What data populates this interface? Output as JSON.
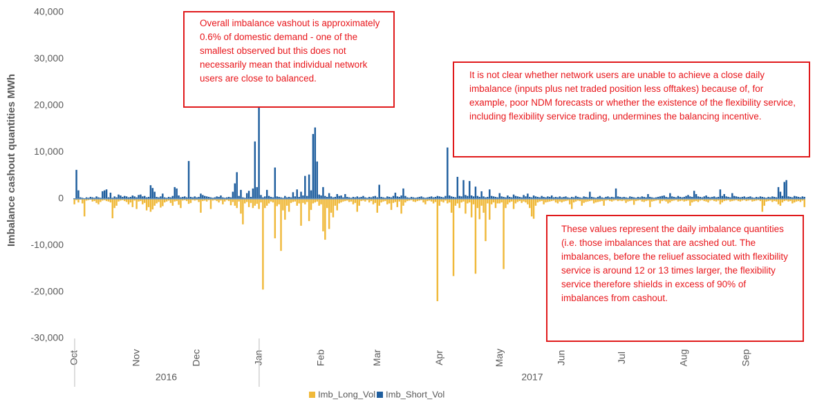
{
  "chart_data": {
    "type": "bar",
    "ylabel": "Imbalance cashout quantities MWh",
    "ylim": [
      -30000,
      40000
    ],
    "yticks": [
      {
        "value": -30000,
        "label": "-30,000"
      },
      {
        "value": -20000,
        "label": "-20,000"
      },
      {
        "value": -10000,
        "label": "-10,000"
      },
      0,
      {
        "value": 10000,
        "label": "10,000"
      },
      {
        "value": 20000,
        "label": "20,000"
      },
      {
        "value": 30000,
        "label": "30,000"
      },
      {
        "value": 40000,
        "label": "40,000"
      }
    ],
    "grid": false,
    "legend": "bottom",
    "years": [
      "2016",
      "2017"
    ],
    "categories": [
      "Oct",
      null,
      null,
      null,
      null,
      null,
      null,
      null,
      null,
      null,
      null,
      null,
      null,
      null,
      null,
      null,
      null,
      null,
      null,
      null,
      null,
      null,
      null,
      null,
      null,
      null,
      null,
      null,
      null,
      null,
      null,
      "Nov",
      null,
      null,
      null,
      null,
      null,
      null,
      null,
      null,
      null,
      null,
      null,
      null,
      null,
      null,
      null,
      null,
      null,
      null,
      null,
      null,
      null,
      null,
      null,
      null,
      null,
      null,
      null,
      null,
      null,
      "Dec",
      null,
      null,
      null,
      null,
      null,
      null,
      null,
      null,
      null,
      null,
      null,
      null,
      null,
      null,
      null,
      null,
      null,
      null,
      null,
      null,
      null,
      null,
      null,
      null,
      null,
      null,
      null,
      null,
      null,
      null,
      "Jan",
      null,
      null,
      null,
      null,
      null,
      null,
      null,
      null,
      null,
      null,
      null,
      null,
      null,
      null,
      null,
      null,
      null,
      null,
      null,
      null,
      null,
      null,
      null,
      null,
      null,
      null,
      null,
      null,
      null,
      null,
      "Feb",
      null,
      null,
      null,
      null,
      null,
      null,
      null,
      null,
      null,
      null,
      null,
      null,
      null,
      null,
      null,
      null,
      null,
      null,
      null,
      null,
      null,
      null,
      null,
      null,
      null,
      null,
      null,
      "Mar",
      null,
      null,
      null,
      null,
      null,
      null,
      null,
      null,
      null,
      null,
      null,
      null,
      null,
      null,
      null,
      null,
      null,
      null,
      null,
      null,
      null,
      null,
      null,
      null,
      null,
      null,
      null,
      null,
      null,
      null,
      "Apr",
      null,
      null,
      null,
      null,
      null,
      null,
      null,
      null,
      null,
      null,
      null,
      null,
      null,
      null,
      null,
      null,
      null,
      null,
      null,
      null,
      null,
      null,
      null,
      null,
      null,
      null,
      null,
      null,
      null,
      "May",
      null,
      null,
      null,
      null,
      null,
      null,
      null,
      null,
      null,
      null,
      null,
      null,
      null,
      null,
      null,
      null,
      null,
      null,
      null,
      null,
      null,
      null,
      null,
      null,
      null,
      null,
      null,
      null,
      null,
      null,
      "Jun",
      null,
      null,
      null,
      null,
      null,
      null,
      null,
      null,
      null,
      null,
      null,
      null,
      null,
      null,
      null,
      null,
      null,
      null,
      null,
      null,
      null,
      null,
      null,
      null,
      null,
      null,
      null,
      null,
      null,
      "Jul",
      null,
      null,
      null,
      null,
      null,
      null,
      null,
      null,
      null,
      null,
      null,
      null,
      null,
      null,
      null,
      null,
      null,
      null,
      null,
      null,
      null,
      null,
      null,
      null,
      null,
      null,
      null,
      null,
      null,
      null,
      "Aug",
      null,
      null,
      null,
      null,
      null,
      null,
      null,
      null,
      null,
      null,
      null,
      null,
      null,
      null,
      null,
      null,
      null,
      null,
      null,
      null,
      null,
      null,
      null,
      null,
      null,
      null,
      null,
      null,
      null,
      null,
      "Sep",
      null,
      null,
      null,
      null,
      null,
      null,
      null,
      null,
      null,
      null,
      null,
      null,
      null,
      null,
      null,
      null,
      null,
      null,
      null,
      null,
      null,
      null,
      null,
      null,
      null,
      null,
      null,
      null,
      null
    ],
    "series": [
      {
        "name": "Imb_Long_Vol",
        "color": "#f0b93a",
        "values": [
          -1200,
          -300,
          -800,
          -200,
          -1000,
          -3800,
          -400,
          -300,
          -200,
          -600,
          -500,
          -900,
          -1200,
          -700,
          -400,
          -300,
          -500,
          -600,
          -800,
          -4200,
          -2000,
          -1500,
          -600,
          -400,
          -300,
          -500,
          -700,
          -1200,
          -800,
          -1800,
          -400,
          -2200,
          -600,
          -500,
          -1200,
          -900,
          -2500,
          -1800,
          -2800,
          -2300,
          -1500,
          -1000,
          -700,
          -1900,
          -1600,
          -800,
          -600,
          -400,
          -900,
          -1500,
          -600,
          -500,
          -1300,
          -2000,
          -400,
          -300,
          -500,
          -1100,
          -900,
          -300,
          -400,
          -300,
          -700,
          -3000,
          -500,
          -400,
          -600,
          -300,
          -2200,
          -400,
          -300,
          -500,
          -800,
          -400,
          -1200,
          -600,
          -300,
          -500,
          -1400,
          -700,
          -1500,
          -2000,
          -600,
          -3200,
          -5500,
          -1000,
          -700,
          -1800,
          -900,
          -2000,
          -1500,
          -1100,
          -2200,
          -800,
          -19500,
          -2000,
          -1500,
          -1000,
          -600,
          -800,
          -8500,
          -1600,
          -1200,
          -11200,
          -2500,
          -4500,
          -1500,
          -2800,
          -900,
          -700,
          -600,
          -1500,
          -1000,
          -5800,
          -900,
          -1200,
          -700,
          -4800,
          -2400,
          -1000,
          -800,
          -600,
          -1500,
          -1200,
          -7000,
          -8800,
          -2000,
          -6500,
          -3000,
          -4000,
          -1500,
          -2500,
          -1000,
          -800,
          -600,
          -500,
          -400,
          -700,
          -600,
          -1200,
          -900,
          -2800,
          -1500,
          -500,
          -400,
          -600,
          -300,
          -800,
          -500,
          -1200,
          -900,
          -3000,
          -1500,
          -800,
          -600,
          -500,
          -1200,
          -1000,
          -2400,
          -900,
          -700,
          -1800,
          -600,
          -3200,
          -1500,
          -800,
          -500,
          -400,
          -300,
          -600,
          -700,
          -500,
          -400,
          -300,
          -800,
          -1200,
          -500,
          -400,
          -600,
          -1000,
          -700,
          -22000,
          -1500,
          -600,
          -800,
          -400,
          -1000,
          -800,
          -3000,
          -16600,
          -1500,
          -1000,
          -2000,
          -800,
          -600,
          -3200,
          -1000,
          -800,
          -4000,
          -1200,
          -16100,
          -2000,
          -4400,
          -1500,
          -3000,
          -9100,
          -1000,
          -4500,
          -1200,
          -800,
          -2000,
          -1000,
          -1000,
          -800,
          -15100,
          -2000,
          -1200,
          -800,
          -600,
          -2200,
          -1000,
          -700,
          -500,
          -900,
          -600,
          -800,
          -1200,
          -2000,
          -3800,
          -4300,
          -1500,
          -800,
          -600,
          -500,
          -1200,
          -800,
          -700,
          -600,
          -500,
          -400,
          -800,
          -1000,
          -600,
          -800,
          -600,
          -500,
          -400,
          -1200,
          -2200,
          -800,
          -600,
          -400,
          -500,
          -1500,
          -900,
          -700,
          -600,
          -500,
          -400,
          -1000,
          -800,
          -700,
          -600,
          -500,
          -1500,
          -400,
          -300,
          -500,
          -600,
          -400,
          -300,
          -500,
          -400,
          -500,
          -400,
          -900,
          -600,
          -500,
          -400,
          -1300,
          -500,
          -400,
          -300,
          -600,
          -700,
          -500,
          -400,
          -1800,
          -600,
          -500,
          -400,
          -300,
          -1000,
          -500,
          -400,
          -600,
          -1000,
          -800,
          -500,
          -400,
          -300,
          -600,
          -500,
          -400,
          -600,
          -500,
          -400,
          -1500,
          -800,
          -600,
          -500,
          -700,
          -400,
          -300,
          -500,
          -600,
          -800,
          -400,
          -300,
          -500,
          -600,
          -400,
          -1200,
          -800,
          -500,
          -400,
          -300,
          -600,
          -500,
          -400,
          -300,
          -500,
          -600,
          -400,
          -300,
          -500,
          -400,
          -300,
          -600,
          -500,
          -400,
          -300,
          -500,
          -2800,
          -1500,
          -600,
          -500,
          -400,
          -700,
          -500,
          -600,
          -1200,
          -1500,
          -800,
          -500,
          -400,
          -600,
          -500,
          -1000,
          -800,
          -600,
          -500,
          -700,
          -400,
          -1800
        ]
      },
      {
        "name": "Imb_Short_Vol",
        "color": "#1f5e9e",
        "values": [
          0,
          6200,
          1800,
          300,
          200,
          100,
          300,
          200,
          400,
          300,
          200,
          500,
          300,
          200,
          1600,
          1800,
          2000,
          300,
          1300,
          200,
          500,
          300,
          900,
          700,
          400,
          600,
          500,
          300,
          400,
          700,
          500,
          300,
          800,
          900,
          500,
          600,
          300,
          400,
          2900,
          2300,
          1500,
          400,
          300,
          500,
          1100,
          300,
          200,
          400,
          300,
          600,
          2500,
          2200,
          700,
          300,
          400,
          500,
          300,
          8100,
          400,
          300,
          500,
          300,
          400,
          1100,
          800,
          600,
          500,
          400,
          300,
          200,
          300,
          500,
          400,
          700,
          300,
          200,
          300,
          400,
          300,
          1500,
          3300,
          5700,
          600,
          1900,
          300,
          200,
          1200,
          1700,
          400,
          2200,
          12300,
          2500,
          31100,
          800,
          300,
          500,
          1900,
          600,
          400,
          300,
          6700,
          500,
          400,
          300,
          200,
          600,
          300,
          400,
          300,
          1400,
          500,
          2000,
          400,
          1500,
          700,
          4900,
          600,
          5200,
          1800,
          13900,
          15300,
          8000,
          900,
          700,
          2500,
          600,
          400,
          1200,
          500,
          300,
          400,
          1000,
          600,
          700,
          300,
          1000,
          400,
          300,
          200,
          400,
          300,
          500,
          300,
          400,
          600,
          300,
          200,
          400,
          300,
          500,
          600,
          300,
          3000,
          400,
          300,
          200,
          500,
          400,
          300,
          600,
          1300,
          500,
          400,
          700,
          2200,
          600,
          300,
          200,
          400,
          300,
          200,
          300,
          400,
          500,
          300,
          200,
          300,
          400,
          500,
          300,
          400,
          600,
          500,
          400,
          300,
          600,
          11000,
          700,
          500,
          400,
          300,
          4700,
          600,
          500,
          4000,
          800,
          600,
          3800,
          700,
          500,
          2600,
          600,
          400,
          1600,
          500,
          300,
          400,
          2000,
          600,
          500,
          400,
          300,
          1200,
          500,
          400,
          300,
          700,
          400,
          300,
          900,
          600,
          500,
          400,
          300,
          800,
          500,
          1100,
          400,
          300,
          700,
          500,
          400,
          300,
          600,
          400,
          300,
          500,
          400,
          700,
          300,
          400,
          300,
          500,
          300,
          400,
          500,
          300,
          200,
          400,
          300,
          600,
          400,
          300,
          200,
          500,
          400,
          300,
          1500,
          400,
          300,
          200,
          400,
          600,
          300,
          200,
          400,
          500,
          300,
          400,
          300,
          2200,
          500,
          400,
          300,
          400,
          300,
          200,
          500,
          400,
          300,
          200,
          400,
          300,
          500,
          400,
          300,
          1000,
          400,
          300,
          200,
          300,
          400,
          500,
          600,
          700,
          400,
          300,
          1200,
          500,
          400,
          300,
          600,
          400,
          300,
          400,
          600,
          800,
          500,
          400,
          1700,
          1000,
          500,
          400,
          300,
          500,
          700,
          400,
          300,
          400,
          500,
          300,
          400,
          2000,
          600,
          1000,
          500,
          400,
          300,
          1200,
          600,
          500,
          400,
          300,
          400,
          500,
          300,
          400,
          500,
          300,
          200,
          400,
          300,
          500,
          400,
          300,
          200,
          400,
          300,
          500,
          400,
          300,
          2500,
          1500,
          600,
          3600,
          4000,
          500,
          400,
          300,
          600,
          500,
          400,
          300,
          500,
          400
        ]
      }
    ],
    "annotations": [
      {
        "text": "Overall imbalance vashout is approximately 0.6% of domestic demand - one of the smallest observed but this does not necessarily mean that individual network users are close to balanced."
      },
      {
        "text": "It is not clear whether network users are unable to achieve a close daily imbalance (inputs plus net traded position less offtakes) because of, for example, poor NDM forecasts or whether the existence of the flexibility service, including flexibility service trading, undermines the balancing incentive."
      },
      {
        "text": "These values represent the daily imbalance quantities (i.e. those imbalances that are acshed out. The imbalances, before the reliuef associated with flexibility service is around 12 or 13 times larger, the flexibility service therefore shields in excess of 90% of imbalances from cashout."
      }
    ]
  }
}
